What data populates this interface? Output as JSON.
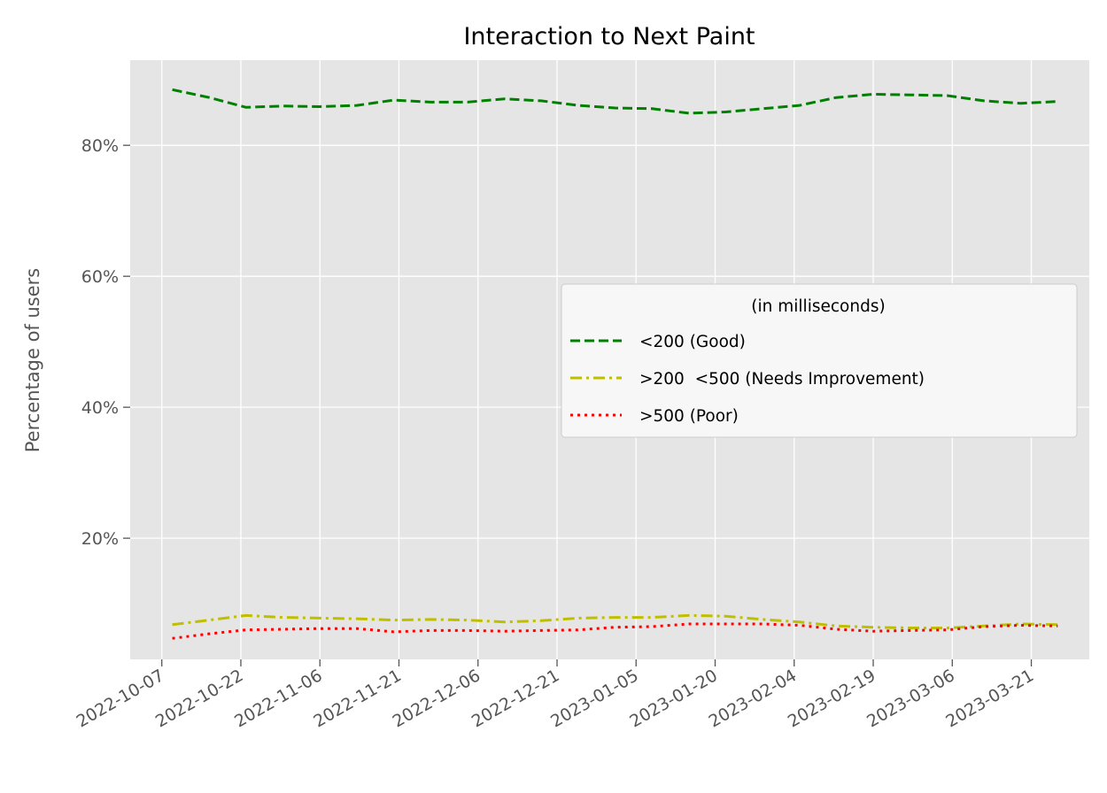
{
  "chart_data": {
    "type": "line",
    "title": "Interaction to Next Paint",
    "xlabel": "",
    "ylabel": "Percentage of users",
    "x_ticks": [
      "2022-10-07",
      "2022-10-22",
      "2022-11-06",
      "2022-11-21",
      "2022-12-06",
      "2022-12-21",
      "2023-01-05",
      "2023-01-20",
      "2023-02-04",
      "2023-02-19",
      "2023-03-06",
      "2023-03-21"
    ],
    "y_ticks": [
      "20%",
      "40%",
      "60%",
      "80%"
    ],
    "y_tick_values": [
      20,
      40,
      60,
      80
    ],
    "xlim": [
      "2022-10-01",
      "2023-04-01"
    ],
    "ylim": [
      1.5,
      93
    ],
    "grid": true,
    "legend": {
      "title": "(in milliseconds)",
      "placement": "center-right"
    },
    "x": [
      "2022-10-09",
      "2022-10-16",
      "2022-10-23",
      "2022-10-30",
      "2022-11-06",
      "2022-11-13",
      "2022-11-20",
      "2022-11-27",
      "2022-12-04",
      "2022-12-11",
      "2022-12-18",
      "2022-12-25",
      "2023-01-01",
      "2023-01-08",
      "2023-01-15",
      "2023-01-22",
      "2023-01-29",
      "2023-02-05",
      "2023-02-12",
      "2023-02-19",
      "2023-02-26",
      "2023-03-05",
      "2023-03-12",
      "2023-03-19",
      "2023-03-26"
    ],
    "series": [
      {
        "name": "<200 (Good)",
        "color": "#008000",
        "style": "dashed",
        "values": [
          88.5,
          87.3,
          85.8,
          86.0,
          85.9,
          86.1,
          86.9,
          86.6,
          86.6,
          87.1,
          86.8,
          86.1,
          85.7,
          85.6,
          84.9,
          85.1,
          85.6,
          86.1,
          87.3,
          87.8,
          87.7,
          87.6,
          86.8,
          86.4,
          86.7
        ]
      },
      {
        "name": ">200  <500 (Needs Improvement)",
        "color": "#bfbf00",
        "style": "dashdot",
        "values": [
          6.8,
          7.5,
          8.2,
          7.9,
          7.8,
          7.7,
          7.5,
          7.6,
          7.5,
          7.2,
          7.4,
          7.8,
          7.9,
          7.9,
          8.2,
          8.1,
          7.6,
          7.2,
          6.6,
          6.4,
          6.3,
          6.3,
          6.6,
          6.9,
          6.8
        ]
      },
      {
        "name": ">500 (Poor)",
        "color": "#ff0000",
        "style": "dotted",
        "values": [
          4.7,
          5.4,
          6.0,
          6.1,
          6.2,
          6.2,
          5.7,
          5.9,
          5.9,
          5.8,
          5.9,
          6.0,
          6.4,
          6.5,
          6.9,
          6.9,
          6.9,
          6.7,
          6.1,
          5.8,
          5.9,
          6.0,
          6.5,
          6.7,
          6.6
        ]
      }
    ]
  }
}
